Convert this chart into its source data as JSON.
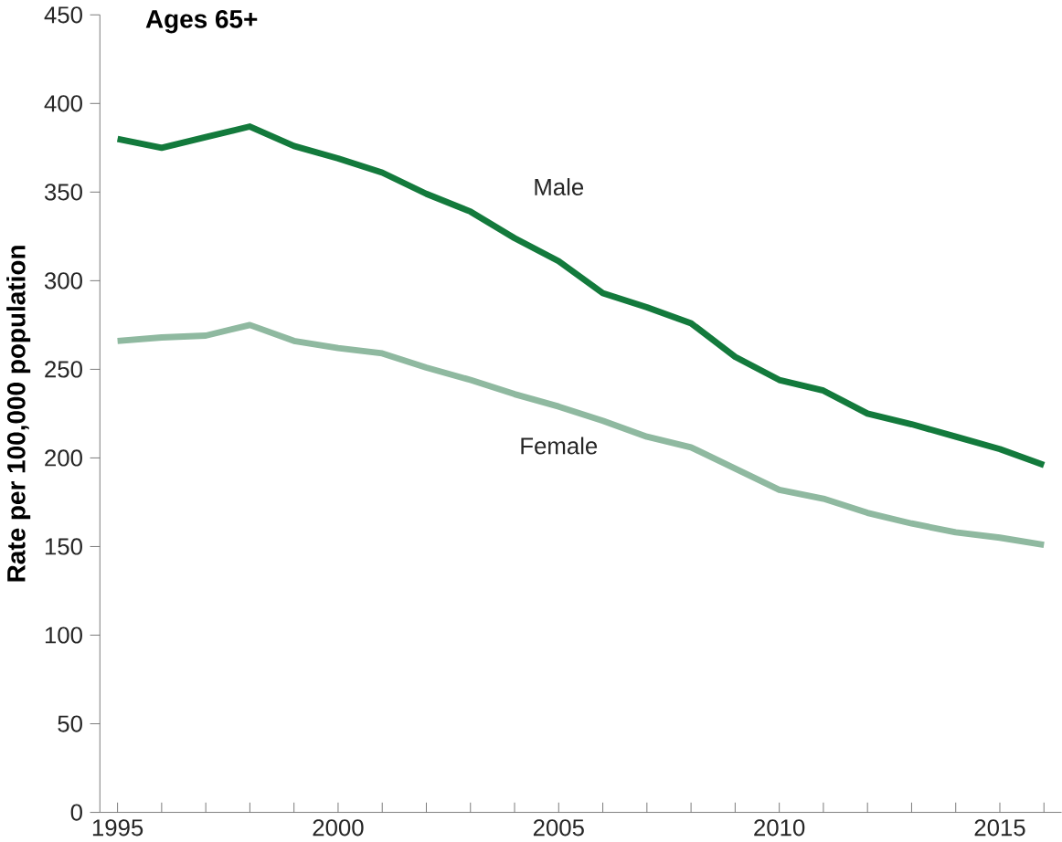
{
  "chart_data": {
    "type": "line",
    "title": "Ages 65+",
    "ylabel": "Rate per 100,000 population",
    "x": [
      1995,
      1996,
      1997,
      1998,
      1999,
      2000,
      2001,
      2002,
      2003,
      2004,
      2005,
      2006,
      2007,
      2008,
      2009,
      2010,
      2011,
      2012,
      2013,
      2014,
      2015,
      2016
    ],
    "series": [
      {
        "name": "Male",
        "color": "#137a3c",
        "values": [
          380,
          375,
          381,
          387,
          376,
          369,
          361,
          349,
          339,
          324,
          311,
          293,
          285,
          276,
          257,
          244,
          238,
          225,
          219,
          212,
          205,
          196
        ]
      },
      {
        "name": "Female",
        "color": "#8fb9a0",
        "values": [
          266,
          268,
          269,
          275,
          266,
          262,
          259,
          251,
          244,
          236,
          229,
          221,
          212,
          206,
          194,
          182,
          177,
          169,
          163,
          158,
          155,
          151
        ]
      }
    ],
    "xlim": [
      1994.6,
      2016.4
    ],
    "ylim": [
      0,
      450
    ],
    "xticks": [
      1995,
      {
        "value": 1996,
        "label": null
      },
      {
        "value": 1997,
        "label": null
      },
      {
        "value": 1998,
        "label": null
      },
      {
        "value": 1999,
        "label": null
      },
      2000,
      {
        "value": 2001,
        "label": null
      },
      {
        "value": 2002,
        "label": null
      },
      {
        "value": 2003,
        "label": null
      },
      {
        "value": 2004,
        "label": null
      },
      2005,
      {
        "value": 2006,
        "label": null
      },
      {
        "value": 2007,
        "label": null
      },
      {
        "value": 2008,
        "label": null
      },
      {
        "value": 2009,
        "label": null
      },
      2010,
      {
        "value": 2011,
        "label": null
      },
      {
        "value": 2012,
        "label": null
      },
      {
        "value": 2013,
        "label": null
      },
      {
        "value": 2014,
        "label": null
      },
      2015,
      {
        "value": 2016,
        "label": null
      }
    ],
    "yticks": [
      0,
      50,
      100,
      150,
      200,
      250,
      300,
      350,
      400,
      450
    ],
    "grid": false,
    "marker": "none",
    "line_style": "solid"
  }
}
